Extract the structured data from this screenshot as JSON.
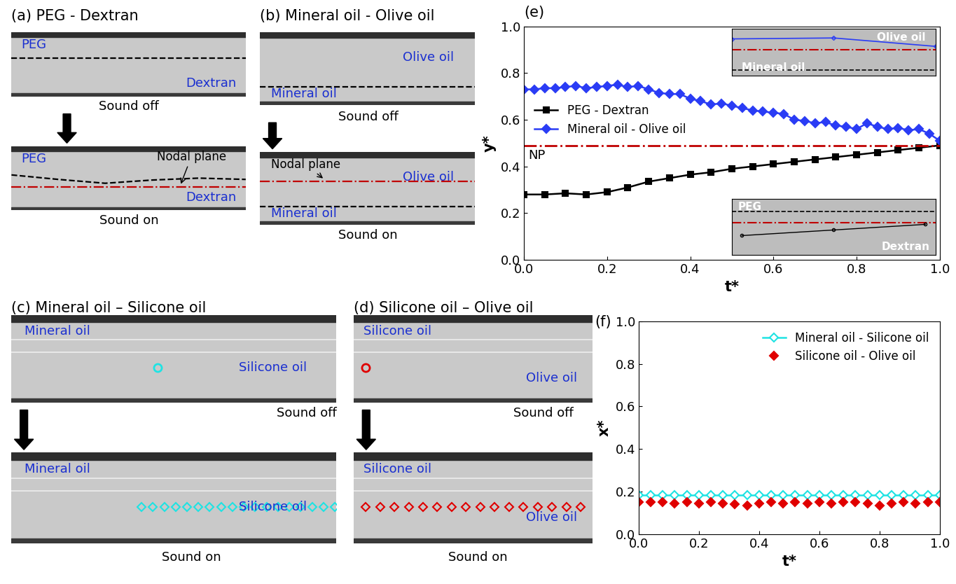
{
  "chart_data": [
    {
      "type": "line",
      "title": "(e)",
      "x_label": "t*",
      "y_label": "y*",
      "xlim": [
        0,
        1
      ],
      "ylim": [
        0,
        1
      ],
      "xticks": [
        {
          "value": 0,
          "label": "0.0"
        },
        {
          "value": 0.2,
          "label": "0.2"
        },
        {
          "value": 0.4,
          "label": "0.4"
        },
        {
          "value": 0.6,
          "label": "0.6"
        },
        {
          "value": 0.8,
          "label": "0.8"
        },
        {
          "value": 1,
          "label": "1.0"
        }
      ],
      "yticks": [
        {
          "value": 0,
          "label": "0.0"
        },
        {
          "value": 0.2,
          "label": "0.2"
        },
        {
          "value": 0.4,
          "label": "0.4"
        },
        {
          "value": 0.6,
          "label": "0.6"
        },
        {
          "value": 0.8,
          "label": "0.8"
        },
        {
          "value": 1,
          "label": "1.0"
        }
      ],
      "legend": "upper left",
      "series": [
        {
          "name": "PEG - Dextran",
          "color": "#000000",
          "marker": "square",
          "line_style": "solid",
          "x": [
            0,
            0.05,
            0.1,
            0.15,
            0.2,
            0.25,
            0.3,
            0.35,
            0.4,
            0.45,
            0.5,
            0.55,
            0.6,
            0.65,
            0.7,
            0.75,
            0.8,
            0.85,
            0.9,
            0.95,
            1.0
          ],
          "values": [
            0.28,
            0.28,
            0.285,
            0.28,
            0.29,
            0.31,
            0.335,
            0.35,
            0.365,
            0.375,
            0.39,
            0.4,
            0.41,
            0.42,
            0.43,
            0.44,
            0.45,
            0.46,
            0.47,
            0.48,
            0.49
          ]
        },
        {
          "name": "Mineral oil - Olive oil",
          "color": "#2a3cf5",
          "marker": "diamond",
          "line_style": "solid",
          "x": [
            0,
            0.025,
            0.05,
            0.075,
            0.1,
            0.125,
            0.15,
            0.175,
            0.2,
            0.225,
            0.25,
            0.275,
            0.3,
            0.325,
            0.35,
            0.375,
            0.4,
            0.425,
            0.45,
            0.475,
            0.5,
            0.525,
            0.55,
            0.575,
            0.6,
            0.625,
            0.65,
            0.675,
            0.7,
            0.725,
            0.75,
            0.775,
            0.8,
            0.825,
            0.85,
            0.875,
            0.9,
            0.925,
            0.95,
            0.975,
            1.0
          ],
          "values": [
            0.73,
            0.73,
            0.735,
            0.735,
            0.74,
            0.745,
            0.735,
            0.74,
            0.745,
            0.75,
            0.74,
            0.745,
            0.73,
            0.715,
            0.71,
            0.71,
            0.69,
            0.68,
            0.665,
            0.67,
            0.66,
            0.65,
            0.64,
            0.635,
            0.63,
            0.625,
            0.6,
            0.595,
            0.585,
            0.59,
            0.575,
            0.57,
            0.56,
            0.585,
            0.57,
            0.56,
            0.565,
            0.555,
            0.56,
            0.54,
            0.51
          ]
        }
      ],
      "hline": {
        "value": 0.49,
        "label": "NP",
        "color": "#c00000",
        "line_style": "dashdot"
      },
      "insets": [
        {
          "labels": [
            "Olive oil",
            "Mineral oil"
          ]
        },
        {
          "labels": [
            "PEG",
            "Dextran"
          ]
        }
      ]
    },
    {
      "type": "line",
      "title": "(f)",
      "x_label": "t*",
      "y_label": "x*",
      "xlim": [
        0,
        1
      ],
      "ylim": [
        0,
        1
      ],
      "xticks": [
        {
          "value": 0,
          "label": "0.0"
        },
        {
          "value": 0.2,
          "label": "0.2"
        },
        {
          "value": 0.4,
          "label": "0.4"
        },
        {
          "value": 0.6,
          "label": "0.6"
        },
        {
          "value": 0.8,
          "label": "0.8"
        },
        {
          "value": 1,
          "label": "1.0"
        }
      ],
      "yticks": [
        {
          "value": 0,
          "label": "0.0"
        },
        {
          "value": 0.2,
          "label": "0.2"
        },
        {
          "value": 0.4,
          "label": "0.4"
        },
        {
          "value": 0.6,
          "label": "0.6"
        },
        {
          "value": 0.8,
          "label": "0.8"
        },
        {
          "value": 1,
          "label": "1.0"
        }
      ],
      "legend": "upper right",
      "series": [
        {
          "name": "Mineral oil - Silicone oil",
          "color": "#1ee3e3",
          "marker": "open diamond",
          "line_style": "solid",
          "x": [
            0,
            0.04,
            0.08,
            0.12,
            0.16,
            0.2,
            0.24,
            0.28,
            0.32,
            0.36,
            0.4,
            0.44,
            0.48,
            0.52,
            0.56,
            0.6,
            0.64,
            0.68,
            0.72,
            0.76,
            0.8,
            0.84,
            0.88,
            0.92,
            0.96,
            1.0
          ],
          "values": [
            0.185,
            0.185,
            0.185,
            0.185,
            0.185,
            0.185,
            0.185,
            0.185,
            0.185,
            0.185,
            0.185,
            0.185,
            0.185,
            0.185,
            0.185,
            0.185,
            0.185,
            0.185,
            0.185,
            0.185,
            0.185,
            0.185,
            0.185,
            0.185,
            0.185,
            0.185
          ]
        },
        {
          "name": "Silicone oil - Olive oil",
          "color": "#e00000",
          "marker": "diamond",
          "line_style": "none",
          "x": [
            0,
            0.04,
            0.08,
            0.12,
            0.16,
            0.2,
            0.24,
            0.28,
            0.32,
            0.36,
            0.4,
            0.44,
            0.48,
            0.52,
            0.56,
            0.6,
            0.64,
            0.68,
            0.72,
            0.76,
            0.8,
            0.84,
            0.88,
            0.92,
            0.96,
            1.0
          ],
          "values": [
            0.15,
            0.15,
            0.15,
            0.145,
            0.15,
            0.145,
            0.15,
            0.145,
            0.14,
            0.135,
            0.145,
            0.15,
            0.145,
            0.15,
            0.145,
            0.15,
            0.145,
            0.15,
            0.15,
            0.145,
            0.135,
            0.145,
            0.15,
            0.145,
            0.15,
            0.15
          ]
        }
      ]
    }
  ],
  "image_panels": [
    {
      "title": "(a) PEG - Dextran",
      "sound_off": {
        "caption": "Sound off",
        "labels": [
          "PEG",
          "Dextran"
        ]
      },
      "sound_on": {
        "caption": "Sound on",
        "labels": [
          "PEG",
          "Dextran"
        ],
        "annotation": "Nodal plane"
      }
    },
    {
      "title": "(b) Mineral oil - Olive oil",
      "sound_off": {
        "caption": "Sound off",
        "labels": [
          "Olive oil",
          "Mineral oil"
        ]
      },
      "sound_on": {
        "caption": "Sound on",
        "labels": [
          "Olive oil",
          "Mineral oil"
        ],
        "annotation": "Nodal plane"
      }
    },
    {
      "title": "(c) Mineral oil – Silicone oil",
      "sound_off": {
        "caption": "Sound off",
        "labels": [
          "Mineral oil",
          "Silicone oil"
        ]
      },
      "sound_on": {
        "caption": "Sound on",
        "labels": [
          "Mineral oil",
          "Silicone oil"
        ]
      }
    },
    {
      "title": "(d) Silicone oil – Olive oil",
      "sound_off": {
        "caption": "Sound off",
        "labels": [
          "Silicone oil",
          "Olive oil"
        ]
      },
      "sound_on": {
        "caption": "Sound on",
        "labels": [
          "Silicone oil",
          "Olive oil"
        ]
      }
    }
  ]
}
